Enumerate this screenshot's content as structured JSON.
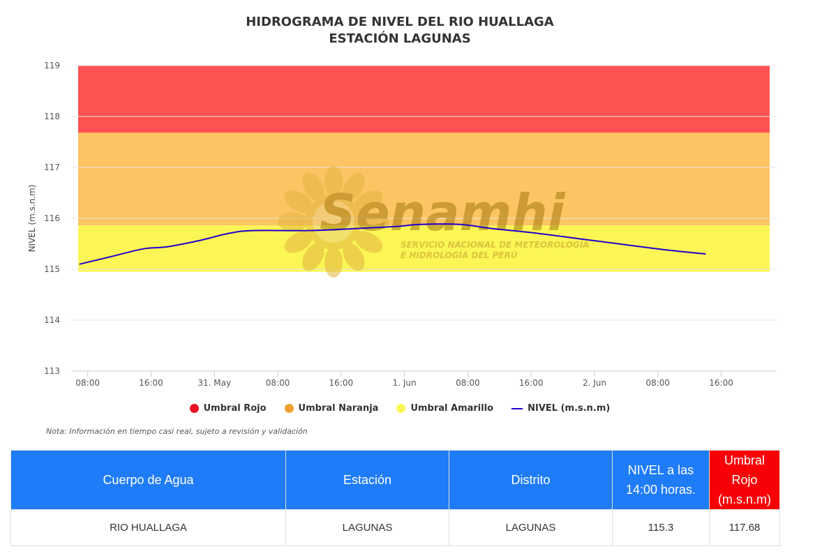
{
  "chart_data": {
    "type": "line",
    "title": "HIDROGRAMA DE NIVEL DEL RIO HUALLAGA",
    "subtitle": "ESTACIÓN LAGUNAS",
    "ylabel": "NIVEL (m.s.n.m)",
    "xlabel": "",
    "ylim": [
      113,
      119
    ],
    "yticks": [
      113,
      114,
      115,
      116,
      117,
      118,
      119
    ],
    "xlim": [
      "2025-05-30T06:00",
      "2025-06-02T23:00"
    ],
    "xticks": [
      {
        "t": "2025-05-30T08:00",
        "label": "08:00"
      },
      {
        "t": "2025-05-30T16:00",
        "label": "16:00"
      },
      {
        "t": "2025-05-31T00:00",
        "label": "31. May"
      },
      {
        "t": "2025-05-31T08:00",
        "label": "08:00"
      },
      {
        "t": "2025-05-31T16:00",
        "label": "16:00"
      },
      {
        "t": "2025-06-01T00:00",
        "label": "1. Jun"
      },
      {
        "t": "2025-06-01T08:00",
        "label": "08:00"
      },
      {
        "t": "2025-06-01T16:00",
        "label": "16:00"
      },
      {
        "t": "2025-06-02T00:00",
        "label": "2. Jun"
      },
      {
        "t": "2025-06-02T08:00",
        "label": "08:00"
      },
      {
        "t": "2025-06-02T16:00",
        "label": "16:00"
      }
    ],
    "bands": [
      {
        "name": "Umbral Rojo",
        "from": 117.68,
        "to": 119,
        "color": "#ff5252"
      },
      {
        "name": "Umbral Naranja",
        "from": 115.86,
        "to": 117.68,
        "color": "#fcc462"
      },
      {
        "name": "Umbral Amarillo",
        "from": 114.95,
        "to": 115.86,
        "color": "#fbf655"
      }
    ],
    "series": [
      {
        "name": "NIVEL (m.s.n.m)",
        "color": "#2200cc",
        "points": [
          {
            "t": "2025-05-30T07:00",
            "y": 115.1
          },
          {
            "t": "2025-05-30T11:00",
            "y": 115.25
          },
          {
            "t": "2025-05-30T15:00",
            "y": 115.4
          },
          {
            "t": "2025-05-30T18:00",
            "y": 115.44
          },
          {
            "t": "2025-05-30T22:00",
            "y": 115.56
          },
          {
            "t": "2025-05-31T02:00",
            "y": 115.71
          },
          {
            "t": "2025-05-31T05:00",
            "y": 115.76
          },
          {
            "t": "2025-05-31T12:00",
            "y": 115.76
          },
          {
            "t": "2025-05-31T18:00",
            "y": 115.8
          },
          {
            "t": "2025-05-31T23:00",
            "y": 115.84
          },
          {
            "t": "2025-06-01T02:00",
            "y": 115.88
          },
          {
            "t": "2025-06-01T07:00",
            "y": 115.88
          },
          {
            "t": "2025-06-01T11:00",
            "y": 115.8
          },
          {
            "t": "2025-06-01T16:00",
            "y": 115.72
          },
          {
            "t": "2025-06-01T22:00",
            "y": 115.6
          },
          {
            "t": "2025-06-02T04:00",
            "y": 115.48
          },
          {
            "t": "2025-06-02T09:00",
            "y": 115.38
          },
          {
            "t": "2025-06-02T14:00",
            "y": 115.3
          }
        ]
      }
    ],
    "legend": [
      "Umbral Rojo",
      "Umbral Naranja",
      "Umbral Amarillo",
      "NIVEL (m.s.n.m)"
    ],
    "legend_colors": [
      "#e81123",
      "#f0a030",
      "#fbf655",
      "#2200cc"
    ],
    "grid": true,
    "legend_position": "bottom"
  },
  "watermark": {
    "name": "Senamhi",
    "line1": "SERVICIO NACIONAL DE METEOROLOGÍA",
    "line2": "E HIDROLOGÍA DEL PERÚ"
  },
  "note": "Nota: Información en tiempo casi real, sujeto a revisión y validación",
  "table": {
    "headers": {
      "cuerpo": "Cuerpo de Agua",
      "estacion": "Estación",
      "distrito": "Distrito",
      "nivel_line1": "NIVEL a las",
      "nivel_line2": "14:00 horas.",
      "umbral_line1": "Umbral Rojo",
      "umbral_line2": "(m.s.n.m)"
    },
    "row": {
      "cuerpo": "RIO HUALLAGA",
      "estacion": "LAGUNAS",
      "distrito": "LAGUNAS",
      "nivel": "115.3",
      "umbral": "117.68"
    }
  }
}
